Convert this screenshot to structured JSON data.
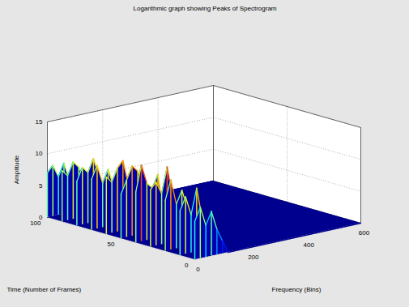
{
  "chart_data": {
    "type": "surface",
    "title": "Logarithmic graph showing Peaks of Spectrogram",
    "x_label": "Frequency (Bins)",
    "y_label": "Time (Number of Frames)",
    "z_label": "Amplitude",
    "x": [
      0,
      20,
      40,
      60,
      80,
      100,
      120,
      150,
      200,
      300,
      400,
      500,
      600
    ],
    "y": [
      0,
      10,
      20,
      30,
      40,
      50,
      60,
      70,
      80,
      90,
      100
    ],
    "z": [
      [
        6,
        8,
        5,
        7,
        4,
        2,
        0,
        0,
        0,
        0,
        0,
        0,
        0
      ],
      [
        7,
        9,
        6,
        10,
        5,
        3,
        0,
        0,
        0,
        0,
        0,
        0,
        0
      ],
      [
        8,
        11,
        7,
        9,
        6,
        2,
        0,
        0,
        0,
        0,
        0,
        0,
        0
      ],
      [
        9,
        10,
        8,
        12,
        7,
        3,
        0,
        0,
        0,
        0,
        0,
        0,
        0
      ],
      [
        8,
        12,
        9,
        8,
        10,
        4,
        0,
        0,
        0,
        0,
        0,
        0,
        0
      ],
      [
        7,
        9,
        11,
        10,
        8,
        3,
        0,
        0,
        0,
        0,
        0,
        0,
        0
      ],
      [
        9,
        8,
        10,
        11,
        7,
        2,
        0,
        0,
        0,
        0,
        0,
        0,
        0
      ],
      [
        8,
        10,
        7,
        9,
        6,
        3,
        0,
        0,
        0,
        0,
        0,
        0,
        0
      ],
      [
        7,
        9,
        8,
        10,
        7,
        2,
        0,
        0,
        0,
        0,
        0,
        0,
        0
      ],
      [
        8,
        7,
        9,
        8,
        6,
        3,
        0,
        0,
        0,
        0,
        0,
        0,
        0
      ],
      [
        7,
        8,
        6,
        8,
        5,
        2,
        0,
        0,
        0,
        0,
        0,
        0,
        0
      ]
    ],
    "xlim": [
      0,
      600
    ],
    "ylim": [
      0,
      100
    ],
    "zlim": [
      0,
      15
    ],
    "xticks": [
      0,
      200,
      400,
      600
    ],
    "yticks": [
      0,
      50,
      100
    ],
    "zticks": [
      0,
      5,
      10,
      15
    ],
    "grid": true
  }
}
